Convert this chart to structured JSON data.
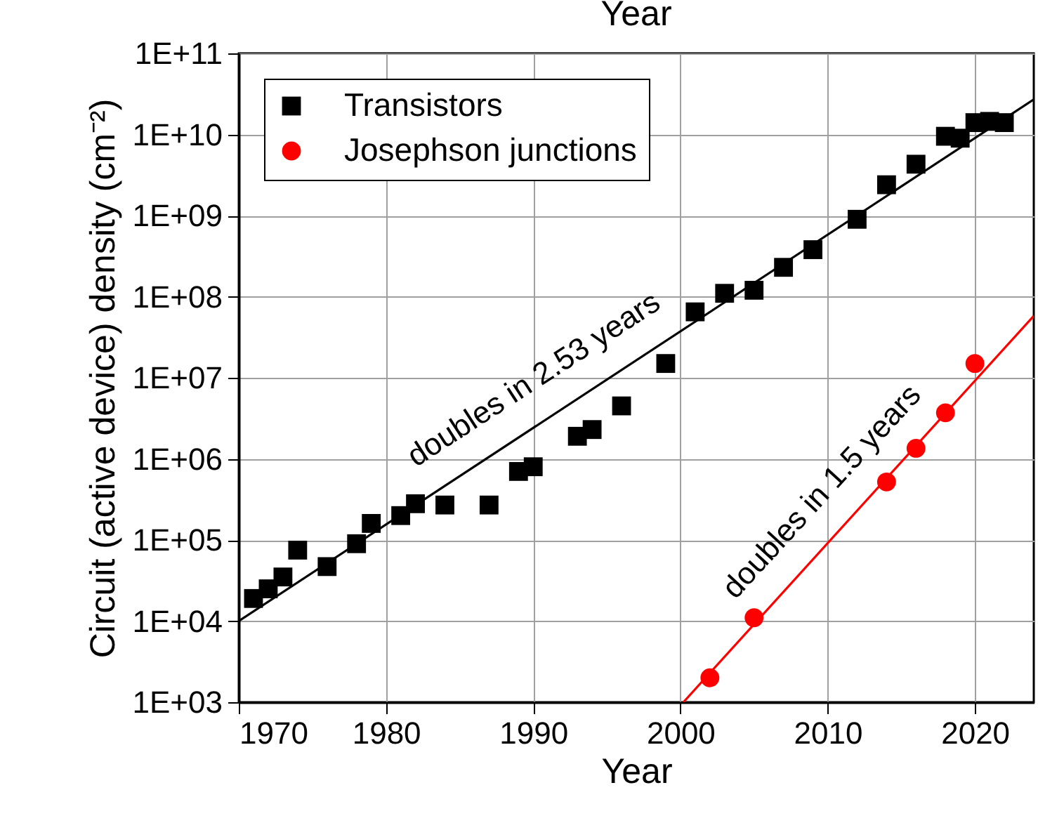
{
  "chart_data": {
    "type": "scatter",
    "xlabel": "Year",
    "x2label": "Year",
    "ylabel": "Circuit (active device) density (cm⁻²)",
    "log": "y",
    "grid": true,
    "legend": "top left",
    "xlim": [
      1970,
      2024
    ],
    "xticks": [
      1970,
      1980,
      1990,
      2000,
      2010,
      2020
    ],
    "ylim": [
      1000,
      100000000000
    ],
    "yticks": [
      {
        "value": 1000,
        "label": "1E+03"
      },
      {
        "value": 10000,
        "label": "1E+04"
      },
      {
        "value": 100000,
        "label": "1E+05"
      },
      {
        "value": 1000000,
        "label": "1E+06"
      },
      {
        "value": 10000000,
        "label": "1E+07"
      },
      {
        "value": 100000000,
        "label": "1E+08"
      },
      {
        "value": 1000000000,
        "label": "1E+09"
      },
      {
        "value": 10000000000,
        "label": "1E+10"
      },
      {
        "value": 100000000000,
        "label": "1E+11"
      }
    ],
    "series": [
      {
        "name": "Transistors",
        "marker": "square",
        "color": "#000000",
        "x": [
          1971,
          1972,
          1973,
          1974,
          1976,
          1978,
          1979,
          1981,
          1982,
          1984,
          1987,
          1989,
          1990,
          1993,
          1994,
          1996,
          1999,
          2001,
          2003,
          2005,
          2007,
          2009,
          2012,
          2014,
          2016,
          2018,
          2019,
          2020,
          2021,
          2022
        ],
        "values": [
          19000,
          25000,
          35000,
          75000,
          47000,
          90000,
          160000,
          200000,
          280000,
          270000,
          270000,
          700000,
          800000,
          1900000,
          2300000,
          4500000,
          15000000,
          65000000,
          110000000,
          120000000,
          230000000,
          380000000,
          900000000,
          2400000000,
          4300000000,
          9500000000,
          9000000000,
          14000000000,
          14500000000,
          14000000000
        ]
      },
      {
        "name": "Josephson junctions",
        "marker": "circle",
        "color": "#ff0000",
        "x": [
          2002,
          2005,
          2014,
          2016,
          2018,
          2020
        ],
        "values": [
          2000,
          11000,
          520000,
          1350000,
          3700000,
          15000000
        ]
      },
      {
        "type": "line",
        "color": "#000000",
        "line_style": "solid",
        "x": [
          1970,
          2024
        ],
        "values": [
          10000,
          27000000000
        ]
      },
      {
        "type": "line",
        "color": "#ff0000",
        "line_style": "solid",
        "x": [
          2000.2,
          2024
        ],
        "values": [
          1000,
          58000000
        ]
      }
    ],
    "annotations": [
      "doubles in 2.53 years",
      "doubles in 1.5 years"
    ]
  }
}
